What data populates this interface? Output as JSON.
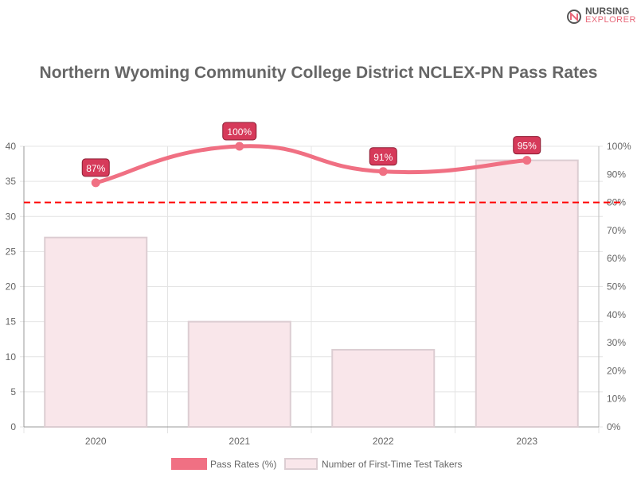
{
  "logo": {
    "line1": "NURSING",
    "line2": "EXPLORER"
  },
  "chart_data": {
    "type": "bar+line",
    "title": "Northern Wyoming Community College District NCLEX-PN Pass Rates",
    "categories": [
      "2020",
      "2021",
      "2022",
      "2023"
    ],
    "series": [
      {
        "name": "Pass Rates (%)",
        "type": "line",
        "axis": "right",
        "values": [
          87,
          100,
          91,
          95
        ],
        "labels": [
          "87%",
          "100%",
          "91%",
          "95%"
        ],
        "color": "#f07083"
      },
      {
        "name": "Number of First-Time Test Takers",
        "type": "bar",
        "axis": "left",
        "values": [
          27,
          15,
          11,
          38
        ],
        "color": "#f9e6ea"
      }
    ],
    "left_axis": {
      "range": [
        0,
        40
      ],
      "ticks": [
        "0",
        "5",
        "10",
        "15",
        "20",
        "25",
        "30",
        "35",
        "40"
      ]
    },
    "right_axis": {
      "range": [
        0,
        100
      ],
      "ticks": [
        "0%",
        "10%",
        "20%",
        "30%",
        "40%",
        "50%",
        "60%",
        "70%",
        "80%",
        "90%",
        "100%"
      ]
    },
    "reference_line": {
      "value": 80,
      "axis": "right",
      "color": "#ff0000",
      "style": "dashed"
    },
    "grid": true,
    "legend": "bottom"
  }
}
